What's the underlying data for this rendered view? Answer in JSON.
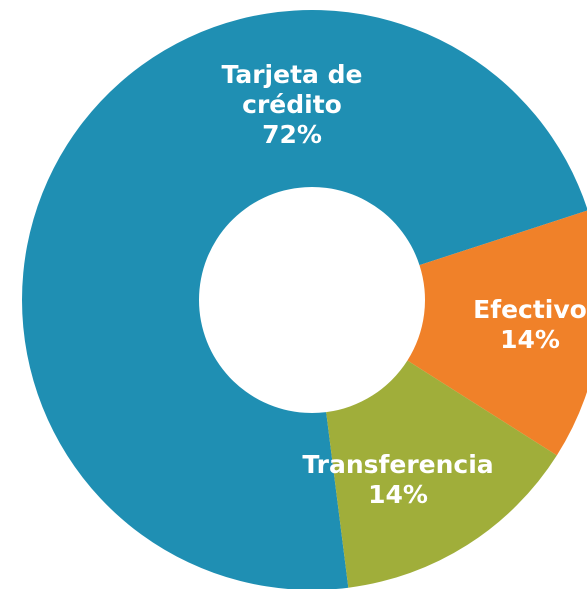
{
  "chart_data": {
    "type": "donut",
    "categories": [
      "Tarjeta de crédito",
      "Efectivo",
      "Transferencia"
    ],
    "values": [
      72,
      14,
      14
    ],
    "value_labels": [
      "72%",
      "14%",
      "14%"
    ],
    "colors": [
      "#1f8fb3",
      "#f08129",
      "#a0ae3a"
    ]
  }
}
